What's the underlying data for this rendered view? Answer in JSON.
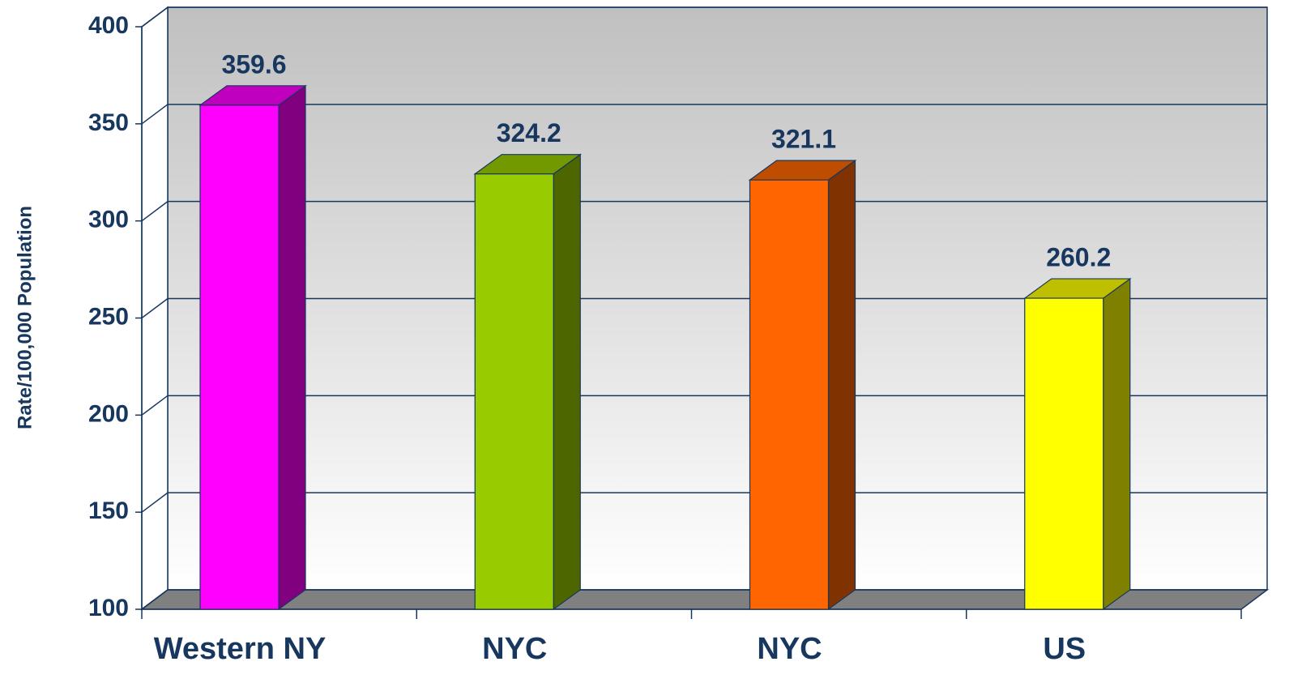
{
  "chart_data": {
    "type": "bar3d",
    "y_axis_label": "Rate/100,000 Population",
    "categories": [
      "Western NY",
      "NYC",
      "NYC",
      "US"
    ],
    "values": [
      359.6,
      324.2,
      321.1,
      260.2
    ],
    "colors": [
      "#ff00ff",
      "#99cc00",
      "#ff6600",
      "#ffff00"
    ],
    "ylim": [
      100,
      400
    ],
    "yticks": [
      100,
      150,
      200,
      250,
      300,
      350,
      400
    ],
    "grid": true
  }
}
